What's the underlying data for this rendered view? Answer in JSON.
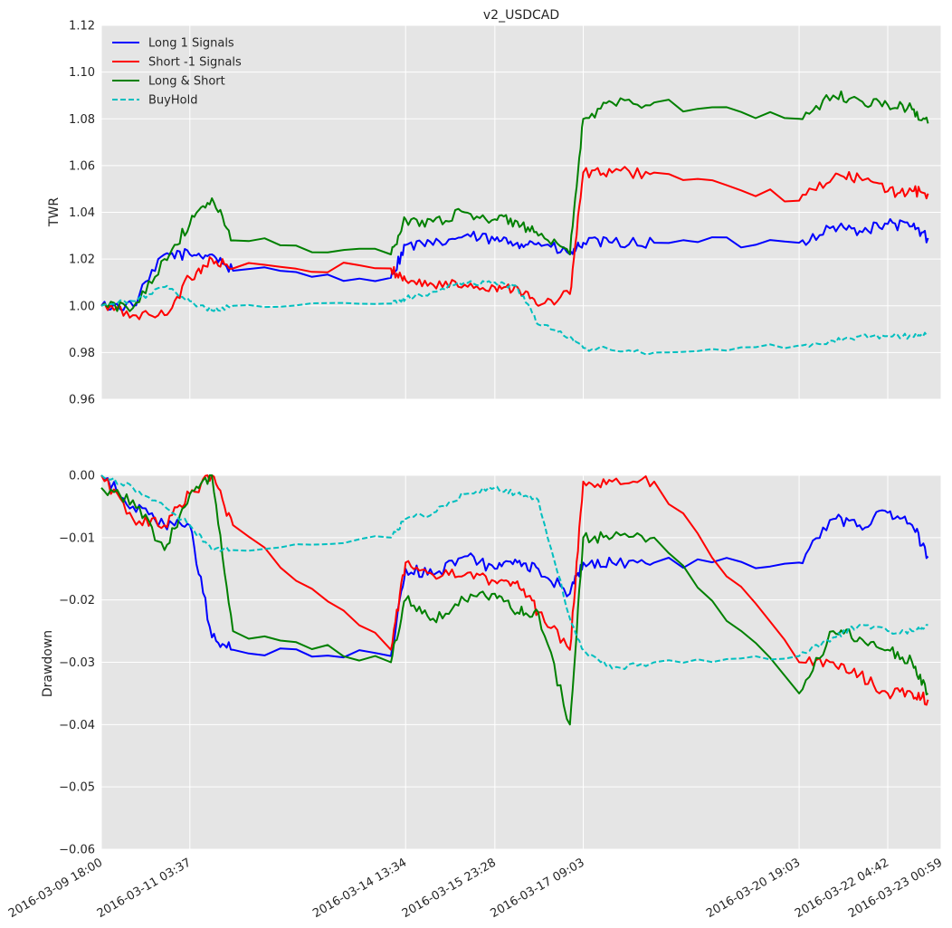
{
  "colors": {
    "long": "#0000ff",
    "short": "#ff0000",
    "longshort": "#008000",
    "buyhold": "#00bfbf",
    "axes_bg": "#e5e5e5",
    "grid": "#ffffff"
  },
  "chart_data": [
    {
      "type": "line",
      "title": "v2_USDCAD",
      "xlabel": "",
      "ylabel": "TWR",
      "ylim": [
        0.96,
        1.12
      ],
      "yticks": [
        "0.96",
        "0.98",
        "1.00",
        "1.02",
        "1.04",
        "1.06",
        "1.08",
        "1.10",
        "1.12"
      ],
      "grid": true,
      "legend_position": "top-left",
      "x": [
        "2016-03-09 18:00",
        "2016-03-10 06:00",
        "2016-03-10 18:00",
        "2016-03-11 03:37",
        "2016-03-11 12:00",
        "2016-03-11 20:00",
        "2016-03-14 08:00",
        "2016-03-14 13:34",
        "2016-03-15 00:00",
        "2016-03-15 12:00",
        "2016-03-15 23:28",
        "2016-03-16 08:00",
        "2016-03-16 16:00",
        "2016-03-17 04:00",
        "2016-03-17 09:03",
        "2016-03-17 20:00",
        "2016-03-18 12:00",
        "2016-03-20 19:03",
        "2016-03-21 08:00",
        "2016-03-21 18:00",
        "2016-03-22 04:42",
        "2016-03-22 14:00",
        "2016-03-22 20:00"
      ],
      "series": [
        {
          "name": "Long 1 Signals",
          "style": "solid",
          "values": [
            1.0,
            1.0,
            1.022,
            1.022,
            1.022,
            1.015,
            1.012,
            1.026,
            1.026,
            1.03,
            1.028,
            1.027,
            1.027,
            1.022,
            1.027,
            1.027,
            1.027,
            1.027,
            1.034,
            1.032,
            1.035,
            1.034,
            1.029
          ]
        },
        {
          "name": "Short -1 Signals",
          "style": "solid",
          "values": [
            1.0,
            0.996,
            0.996,
            1.012,
            1.02,
            1.016,
            1.016,
            1.011,
            1.009,
            1.009,
            1.008,
            1.008,
            1.0,
            1.005,
            1.057,
            1.057,
            1.057,
            1.045,
            1.055,
            1.055,
            1.049,
            1.049,
            1.048
          ]
        },
        {
          "name": "Long & Short",
          "style": "solid",
          "values": [
            1.0,
            0.999,
            1.02,
            1.035,
            1.046,
            1.028,
            1.022,
            1.037,
            1.036,
            1.04,
            1.037,
            1.036,
            1.03,
            1.022,
            1.08,
            1.087,
            1.087,
            1.08,
            1.09,
            1.088,
            1.086,
            1.084,
            1.078
          ]
        },
        {
          "name": "BuyHold",
          "style": "dashed",
          "values": [
            1.0,
            1.002,
            1.008,
            1.002,
            0.998,
            1.0,
            1.001,
            1.003,
            1.006,
            1.01,
            1.01,
            1.008,
            0.992,
            0.987,
            0.982,
            0.981,
            0.98,
            0.983,
            0.985,
            0.987,
            0.987,
            0.987,
            0.988
          ]
        }
      ]
    },
    {
      "type": "line",
      "title": "",
      "xlabel": "",
      "ylabel": "Drawdown",
      "ylim": [
        -0.06,
        0.0
      ],
      "yticks": [
        "−0.06",
        "−0.05",
        "−0.04",
        "−0.03",
        "−0.02",
        "−0.01",
        "0.00"
      ],
      "grid": true,
      "x": [
        "2016-03-09 18:00",
        "2016-03-10 06:00",
        "2016-03-10 18:00",
        "2016-03-11 03:37",
        "2016-03-11 12:00",
        "2016-03-11 20:00",
        "2016-03-14 08:00",
        "2016-03-14 13:34",
        "2016-03-15 00:00",
        "2016-03-15 12:00",
        "2016-03-15 23:28",
        "2016-03-16 08:00",
        "2016-03-16 16:00",
        "2016-03-17 04:00",
        "2016-03-17 09:03",
        "2016-03-17 20:00",
        "2016-03-18 12:00",
        "2016-03-20 19:03",
        "2016-03-21 08:00",
        "2016-03-21 18:00",
        "2016-03-22 04:42",
        "2016-03-22 14:00",
        "2016-03-22 20:00"
      ],
      "xticks": [
        "2016-03-09 18:00",
        "2016-03-11 03:37",
        "2016-03-14 13:34",
        "2016-03-15 23:28",
        "2016-03-17 09:03",
        "2016-03-20 19:03",
        "2016-03-22 04:42",
        "2016-03-23 00:59"
      ],
      "series": [
        {
          "name": "Long 1 Signals",
          "style": "solid",
          "values": [
            0.0,
            -0.005,
            -0.008,
            -0.008,
            -0.026,
            -0.028,
            -0.029,
            -0.015,
            -0.016,
            -0.013,
            -0.015,
            -0.014,
            -0.015,
            -0.019,
            -0.014,
            -0.014,
            -0.014,
            -0.014,
            -0.007,
            -0.008,
            -0.006,
            -0.008,
            -0.013
          ]
        },
        {
          "name": "Short -1 Signals",
          "style": "solid",
          "values": [
            0.0,
            -0.007,
            -0.008,
            -0.003,
            0.0,
            -0.008,
            -0.028,
            -0.014,
            -0.016,
            -0.016,
            -0.017,
            -0.017,
            -0.022,
            -0.028,
            -0.001,
            -0.001,
            -0.001,
            -0.03,
            -0.03,
            -0.032,
            -0.035,
            -0.035,
            -0.036
          ]
        },
        {
          "name": "Long & Short",
          "style": "solid",
          "values": [
            -0.002,
            -0.004,
            -0.012,
            -0.003,
            0.0,
            -0.025,
            -0.03,
            -0.02,
            -0.023,
            -0.02,
            -0.019,
            -0.022,
            -0.022,
            -0.04,
            -0.01,
            -0.01,
            -0.01,
            -0.035,
            -0.025,
            -0.026,
            -0.028,
            -0.03,
            -0.035
          ]
        },
        {
          "name": "BuyHold",
          "style": "dashed",
          "values": [
            0.0,
            -0.002,
            -0.005,
            -0.008,
            -0.012,
            -0.012,
            -0.01,
            -0.007,
            -0.006,
            -0.003,
            -0.002,
            -0.003,
            -0.004,
            -0.023,
            -0.028,
            -0.031,
            -0.03,
            -0.029,
            -0.026,
            -0.024,
            -0.025,
            -0.025,
            -0.024
          ]
        }
      ]
    }
  ]
}
